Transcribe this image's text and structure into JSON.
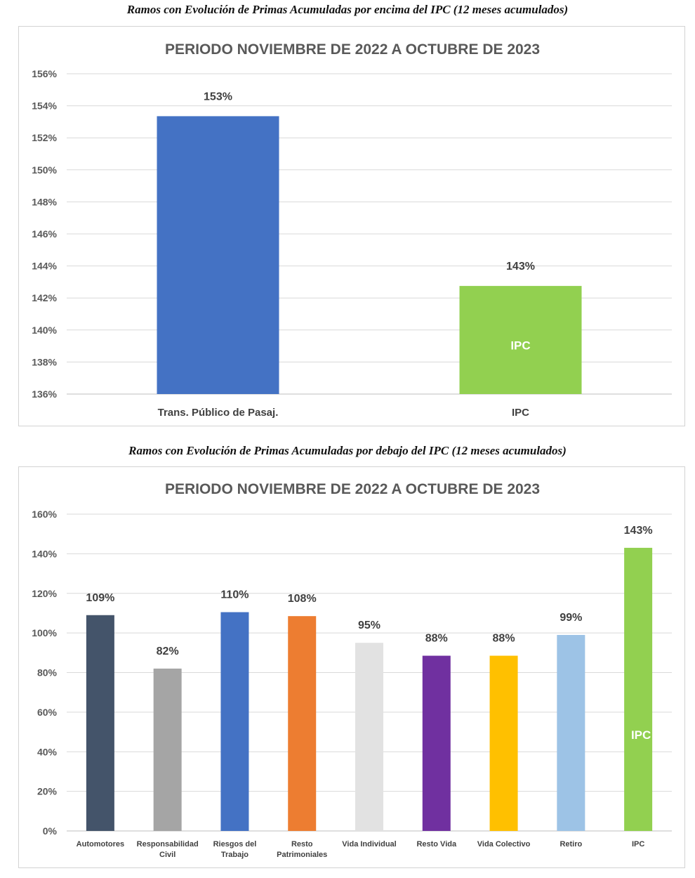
{
  "captions": {
    "above": "Ramos con Evolución de Primas Acumuladas por encima del IPC (12 meses acumulados)",
    "below": "Ramos con Evolución de Primas Acumuladas por debajo del IPC (12 meses acumulados)"
  },
  "chart_data": [
    {
      "type": "bar",
      "title": "PERIODO NOVIEMBRE DE 2022 A OCTUBRE DE 2023",
      "xlabel": "",
      "ylabel": "",
      "ylim": [
        136,
        156
      ],
      "ytick_step": 2,
      "ytick_labels": [
        "136%",
        "138%",
        "140%",
        "142%",
        "144%",
        "146%",
        "148%",
        "150%",
        "152%",
        "154%",
        "156%"
      ],
      "grid": true,
      "categories": [
        "Trans. Público de Pasaj.",
        "IPC"
      ],
      "values": [
        153.35,
        142.75
      ],
      "data_labels": [
        "153%",
        "143%"
      ],
      "colors": [
        "#4472C4",
        "#92D050"
      ],
      "inner_label": {
        "index": 1,
        "text": "IPC"
      }
    },
    {
      "type": "bar",
      "title": "PERIODO NOVIEMBRE DE 2022 A OCTUBRE DE 2023",
      "xlabel": "",
      "ylabel": "",
      "ylim": [
        0,
        160
      ],
      "ytick_step": 20,
      "ytick_labels": [
        "0%",
        "20%",
        "40%",
        "60%",
        "80%",
        "100%",
        "120%",
        "140%",
        "160%"
      ],
      "grid": true,
      "categories": [
        "Automotores",
        "Responsabilidad Civil",
        "Riesgos del Trabajo",
        "Resto Patrimoniales",
        "Vida Individual",
        "Resto Vida",
        "Vida Colectivo",
        "Retiro",
        "IPC"
      ],
      "category_lines": [
        [
          "Automotores"
        ],
        [
          "Responsabilidad",
          "Civil"
        ],
        [
          "Riesgos del",
          "Trabajo"
        ],
        [
          "Resto",
          "Patrimoniales"
        ],
        [
          "Vida Individual"
        ],
        [
          "Resto Vida"
        ],
        [
          "Vida Colectivo"
        ],
        [
          "Retiro"
        ],
        [
          "IPC"
        ]
      ],
      "values": [
        109,
        82,
        110.5,
        108.5,
        95,
        88.5,
        88.5,
        99,
        143
      ],
      "data_labels": [
        "109%",
        "82%",
        "110%",
        "108%",
        "95%",
        "88%",
        "88%",
        "99%",
        "143%"
      ],
      "colors": [
        "#44546A",
        "#A5A5A5",
        "#4472C4",
        "#ED7D31",
        "#E2E2E2",
        "#7030A0",
        "#FFC000",
        "#9DC3E6",
        "#92D050"
      ],
      "inner_label": {
        "index": 8,
        "text": "IPC"
      }
    }
  ]
}
